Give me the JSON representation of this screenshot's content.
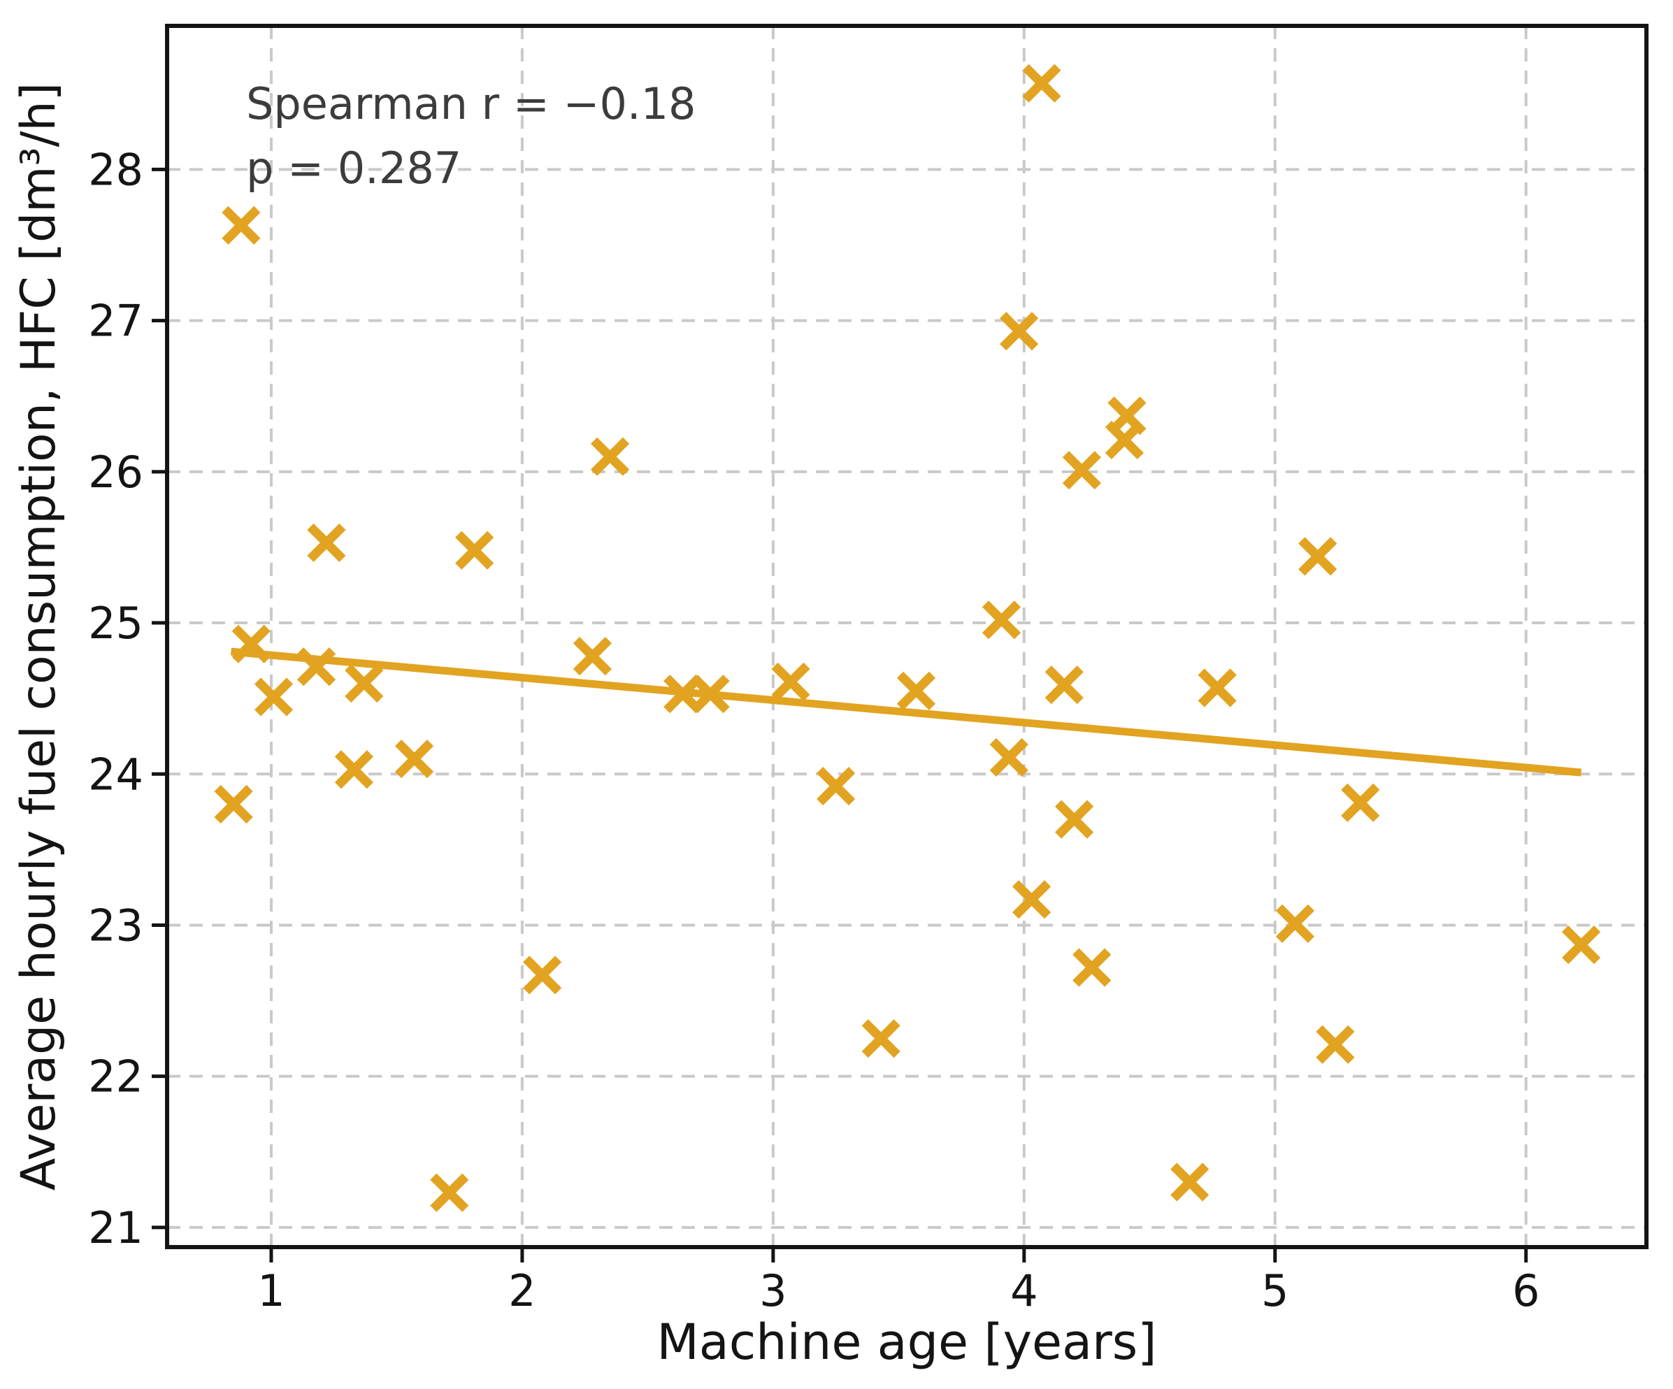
{
  "chart_data": {
    "type": "scatter",
    "title": "",
    "xlabel": "Machine age [years]",
    "ylabel": "Average hourly fuel consumption, HFC [dm³/h]",
    "annotation": {
      "line1": "Spearman r = −0.18",
      "line2": "p = 0.287",
      "spearman_r": -0.18,
      "p_value": 0.287
    },
    "xlim": [
      0.585,
      6.48
    ],
    "ylim": [
      20.87,
      28.95
    ],
    "xticks": [
      "1",
      "2",
      "3",
      "4",
      "5",
      "6"
    ],
    "xtick_values": [
      1,
      2,
      3,
      4,
      5,
      6
    ],
    "yticks": [
      "21",
      "22",
      "23",
      "24",
      "25",
      "26",
      "27",
      "28"
    ],
    "ytick_values": [
      21,
      22,
      23,
      24,
      25,
      26,
      27,
      28
    ],
    "grid": true,
    "legend": null,
    "marker": "x",
    "points": [
      [
        0.85,
        23.8
      ],
      [
        0.88,
        27.63
      ],
      [
        0.92,
        24.86
      ],
      [
        1.01,
        24.51
      ],
      [
        1.18,
        24.71
      ],
      [
        1.22,
        25.53
      ],
      [
        1.33,
        24.03
      ],
      [
        1.37,
        24.6
      ],
      [
        1.57,
        24.1
      ],
      [
        1.71,
        21.23
      ],
      [
        1.81,
        25.48
      ],
      [
        2.08,
        22.67
      ],
      [
        2.28,
        24.78
      ],
      [
        2.35,
        26.1
      ],
      [
        2.64,
        24.53
      ],
      [
        2.75,
        24.53
      ],
      [
        3.07,
        24.61
      ],
      [
        3.25,
        23.92
      ],
      [
        3.43,
        22.25
      ],
      [
        3.57,
        24.55
      ],
      [
        3.91,
        25.02
      ],
      [
        3.94,
        24.11
      ],
      [
        3.98,
        26.93
      ],
      [
        4.03,
        23.17
      ],
      [
        4.07,
        28.57
      ],
      [
        4.16,
        24.59
      ],
      [
        4.2,
        23.7
      ],
      [
        4.23,
        26.01
      ],
      [
        4.27,
        22.72
      ],
      [
        4.4,
        26.21
      ],
      [
        4.41,
        26.37
      ],
      [
        4.66,
        21.3
      ],
      [
        4.77,
        24.57
      ],
      [
        5.08,
        23.01
      ],
      [
        5.17,
        25.44
      ],
      [
        5.24,
        22.21
      ],
      [
        5.34,
        23.81
      ],
      [
        6.22,
        22.87
      ]
    ],
    "trendline": {
      "x1": 0.84,
      "y1": 24.81,
      "x2": 6.22,
      "y2": 24.01
    },
    "colors": {
      "marker": "#E2A321",
      "trend": "#E2A321",
      "grid": "#C9C9C9",
      "spine": "#141414",
      "tick_text": "#141414",
      "annotation_text": "#3C3C3C",
      "background": "#FFFFFF"
    }
  }
}
